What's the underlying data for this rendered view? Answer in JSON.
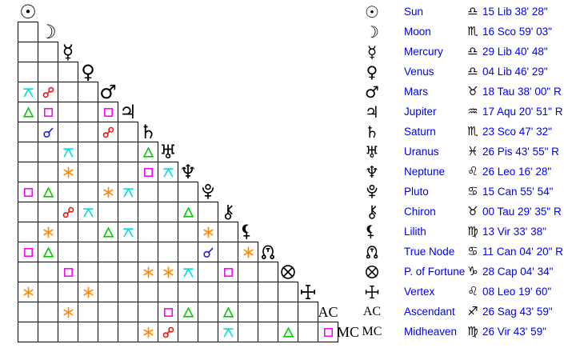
{
  "background": "#ffffff",
  "colors": {
    "grid_border": "#000000",
    "glyph_black": "#000000",
    "table_text_blue": "#0000ee",
    "aspects": {
      "conjunction": "#2222cc",
      "opposition": "#ee1111",
      "square": "#ff00ff",
      "trine": "#00cc00",
      "sextile": "#ff8800",
      "quincunx": "#00dede"
    }
  },
  "planet_chars": {
    "sun": "☉",
    "moon": "☽",
    "mercury": "☿",
    "venus": "♀",
    "mars": "♂",
    "jupiter": "♃",
    "saturn": "♄",
    "uranus": "♅",
    "neptune": "♆"
  },
  "sign_chars": {
    "libra": "♎",
    "scorpio": "♏",
    "taurus": "♉",
    "aquarius": "♒",
    "pisces": "♓",
    "leo": "♌",
    "cancer": "♋",
    "virgo": "♍",
    "capricorn": "♑",
    "sagittarius": "♐"
  },
  "planets": [
    {
      "name": "Sun",
      "glyph": "sun",
      "gtype": "char",
      "short": "",
      "sign_glyph": "libra",
      "position": "15 Lib 38' 28\""
    },
    {
      "name": "Moon",
      "glyph": "moon",
      "gtype": "char",
      "short": "",
      "sign_glyph": "scorpio",
      "position": "16 Sco 59' 03\""
    },
    {
      "name": "Mercury",
      "glyph": "mercury",
      "gtype": "char",
      "short": "",
      "sign_glyph": "libra",
      "position": "29 Lib 40' 48\""
    },
    {
      "name": "Venus",
      "glyph": "venus",
      "gtype": "char",
      "short": "",
      "sign_glyph": "libra",
      "position": "04 Lib 46' 29\""
    },
    {
      "name": "Mars",
      "glyph": "mars",
      "gtype": "char",
      "short": "",
      "sign_glyph": "taurus",
      "position": "18 Tau 38' 00\" R"
    },
    {
      "name": "Jupiter",
      "glyph": "jupiter",
      "gtype": "char",
      "short": "",
      "sign_glyph": "aquarius",
      "position": "17 Aqu 20' 51\" R"
    },
    {
      "name": "Saturn",
      "glyph": "saturn",
      "gtype": "char",
      "short": "",
      "sign_glyph": "scorpio",
      "position": "23 Sco 47' 32\""
    },
    {
      "name": "Uranus",
      "glyph": "uranus",
      "gtype": "char",
      "short": "",
      "sign_glyph": "pisces",
      "position": "26 Pis 43' 55\" R"
    },
    {
      "name": "Neptune",
      "glyph": "neptune",
      "gtype": "char",
      "short": "",
      "sign_glyph": "leo",
      "position": "26 Leo 16' 28\""
    },
    {
      "name": "Pluto",
      "glyph": "pluto",
      "gtype": "svg",
      "short": "",
      "sign_glyph": "cancer",
      "position": "15 Can 55' 54\""
    },
    {
      "name": "Chiron",
      "glyph": "chiron",
      "gtype": "svg",
      "short": "",
      "sign_glyph": "taurus",
      "position": "00 Tau 29' 35\" R"
    },
    {
      "name": "Lilith",
      "glyph": "lilith",
      "gtype": "svg",
      "short": "",
      "sign_glyph": "virgo",
      "position": "13 Vir 33' 38\""
    },
    {
      "name": "True Node",
      "glyph": "node",
      "gtype": "svg",
      "short": "",
      "sign_glyph": "cancer",
      "position": "11 Can 04' 20\" R"
    },
    {
      "name": "P. of Fortune",
      "glyph": "pof",
      "gtype": "svg",
      "short": "",
      "sign_glyph": "capricorn",
      "position": "28 Cap 04' 34\""
    },
    {
      "name": "Vertex",
      "glyph": "vertex",
      "gtype": "svg",
      "short": "",
      "sign_glyph": "leo",
      "position": "08 Leo 19' 60\""
    },
    {
      "name": "Ascendant",
      "glyph": "ac",
      "gtype": "text",
      "short": "AC",
      "sign_glyph": "sagittarius",
      "position": "26 Sag 43' 59\""
    },
    {
      "name": "Midheaven",
      "glyph": "mc",
      "gtype": "text",
      "short": "MC",
      "sign_glyph": "virgo",
      "position": "26 Vir 43' 59\""
    }
  ],
  "chart_data": {
    "type": "table",
    "title": "Aspectarian grid with planet positions",
    "grid_rows_order": [
      "Sun",
      "Moon",
      "Mercury",
      "Venus",
      "Mars",
      "Jupiter",
      "Saturn",
      "Uranus",
      "Neptune",
      "Pluto",
      "Chiron",
      "Lilith",
      "True Node",
      "P. of Fortune",
      "Vertex",
      "Ascendant",
      "Midheaven"
    ],
    "aspects": [
      {
        "row": 5,
        "col": 1,
        "type": "quincunx"
      },
      {
        "row": 5,
        "col": 2,
        "type": "opposition"
      },
      {
        "row": 6,
        "col": 1,
        "type": "trine"
      },
      {
        "row": 6,
        "col": 2,
        "type": "square"
      },
      {
        "row": 6,
        "col": 5,
        "type": "square"
      },
      {
        "row": 7,
        "col": 2,
        "type": "conjunction"
      },
      {
        "row": 7,
        "col": 5,
        "type": "opposition"
      },
      {
        "row": 8,
        "col": 3,
        "type": "quincunx"
      },
      {
        "row": 8,
        "col": 7,
        "type": "trine"
      },
      {
        "row": 9,
        "col": 3,
        "type": "sextile"
      },
      {
        "row": 9,
        "col": 7,
        "type": "square"
      },
      {
        "row": 9,
        "col": 8,
        "type": "quincunx"
      },
      {
        "row": 10,
        "col": 1,
        "type": "square"
      },
      {
        "row": 10,
        "col": 2,
        "type": "trine"
      },
      {
        "row": 10,
        "col": 5,
        "type": "sextile"
      },
      {
        "row": 10,
        "col": 6,
        "type": "quincunx"
      },
      {
        "row": 11,
        "col": 3,
        "type": "opposition"
      },
      {
        "row": 11,
        "col": 4,
        "type": "quincunx"
      },
      {
        "row": 11,
        "col": 9,
        "type": "trine"
      },
      {
        "row": 12,
        "col": 2,
        "type": "sextile"
      },
      {
        "row": 12,
        "col": 5,
        "type": "trine"
      },
      {
        "row": 12,
        "col": 6,
        "type": "quincunx"
      },
      {
        "row": 12,
        "col": 10,
        "type": "sextile"
      },
      {
        "row": 13,
        "col": 1,
        "type": "square"
      },
      {
        "row": 13,
        "col": 2,
        "type": "trine"
      },
      {
        "row": 13,
        "col": 10,
        "type": "conjunction"
      },
      {
        "row": 13,
        "col": 12,
        "type": "sextile"
      },
      {
        "row": 14,
        "col": 3,
        "type": "square"
      },
      {
        "row": 14,
        "col": 7,
        "type": "sextile"
      },
      {
        "row": 14,
        "col": 8,
        "type": "sextile"
      },
      {
        "row": 14,
        "col": 9,
        "type": "quincunx"
      },
      {
        "row": 14,
        "col": 11,
        "type": "square"
      },
      {
        "row": 15,
        "col": 1,
        "type": "sextile"
      },
      {
        "row": 15,
        "col": 4,
        "type": "sextile"
      },
      {
        "row": 16,
        "col": 3,
        "type": "sextile"
      },
      {
        "row": 16,
        "col": 8,
        "type": "square"
      },
      {
        "row": 16,
        "col": 9,
        "type": "trine"
      },
      {
        "row": 16,
        "col": 11,
        "type": "trine"
      },
      {
        "row": 17,
        "col": 7,
        "type": "sextile"
      },
      {
        "row": 17,
        "col": 8,
        "type": "opposition"
      },
      {
        "row": 17,
        "col": 11,
        "type": "quincunx"
      },
      {
        "row": 17,
        "col": 14,
        "type": "trine"
      },
      {
        "row": 17,
        "col": 16,
        "type": "square"
      }
    ]
  }
}
